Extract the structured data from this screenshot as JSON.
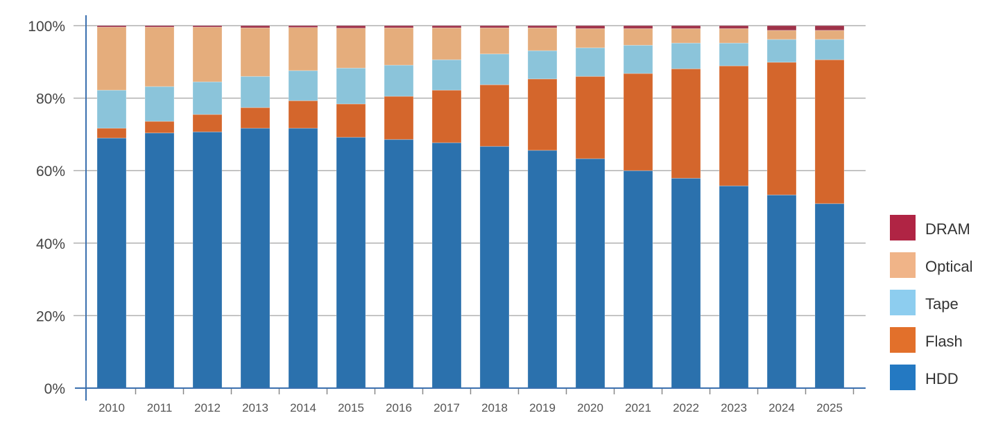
{
  "chart_data": {
    "type": "bar",
    "stacked": true,
    "title": "",
    "xlabel": "",
    "ylabel": "",
    "ylim": [
      0,
      100
    ],
    "y_ticks": [
      "0%",
      "20%",
      "40%",
      "60%",
      "80%",
      "100%"
    ],
    "y_tick_values": [
      0,
      20,
      40,
      60,
      80,
      100
    ],
    "grid": true,
    "legend_position": "right",
    "categories": [
      "2010",
      "2011",
      "2012",
      "2013",
      "2014",
      "2015",
      "2016",
      "2017",
      "2018",
      "2019",
      "2020",
      "2021",
      "2022",
      "2023",
      "2024",
      "2025"
    ],
    "series": [
      {
        "name": "HDD",
        "color": "#2b71ad",
        "legend_color": "#2479c2",
        "values": [
          69.0,
          70.4,
          70.7,
          71.7,
          71.7,
          69.2,
          68.6,
          67.7,
          66.7,
          65.6,
          63.3,
          60.0,
          57.9,
          55.8,
          53.3,
          50.9
        ]
      },
      {
        "name": "Flash",
        "color": "#d4662c",
        "legend_color": "#e2702b",
        "values": [
          2.7,
          3.2,
          4.8,
          5.7,
          7.6,
          9.2,
          11.9,
          14.5,
          17.0,
          19.7,
          22.7,
          26.8,
          30.2,
          33.1,
          36.6,
          39.7
        ]
      },
      {
        "name": "Tape",
        "color": "#8bc4da",
        "legend_color": "#8dcdef",
        "values": [
          10.5,
          9.6,
          9.0,
          8.6,
          8.3,
          9.9,
          8.6,
          8.4,
          8.5,
          7.8,
          7.9,
          7.8,
          7.1,
          6.3,
          6.3,
          5.6
        ]
      },
      {
        "name": "Optical",
        "color": "#e5ad7c",
        "legend_color": "#f0b488",
        "values": [
          17.4,
          16.4,
          15.1,
          13.4,
          11.9,
          11.0,
          10.3,
          8.8,
          7.2,
          6.3,
          5.3,
          4.6,
          4.0,
          4.0,
          2.5,
          2.5
        ]
      },
      {
        "name": "DRAM",
        "color": "#9e3249",
        "legend_color": "#b02444",
        "values": [
          0.4,
          0.4,
          0.4,
          0.6,
          0.5,
          0.7,
          0.6,
          0.6,
          0.6,
          0.6,
          0.8,
          0.8,
          0.8,
          0.8,
          1.3,
          1.3
        ]
      }
    ],
    "legend_order": [
      "DRAM",
      "Optical",
      "Tape",
      "Flash",
      "HDD"
    ],
    "axis_color": "#3a6fae",
    "grid_color": "#b0b0b0"
  }
}
